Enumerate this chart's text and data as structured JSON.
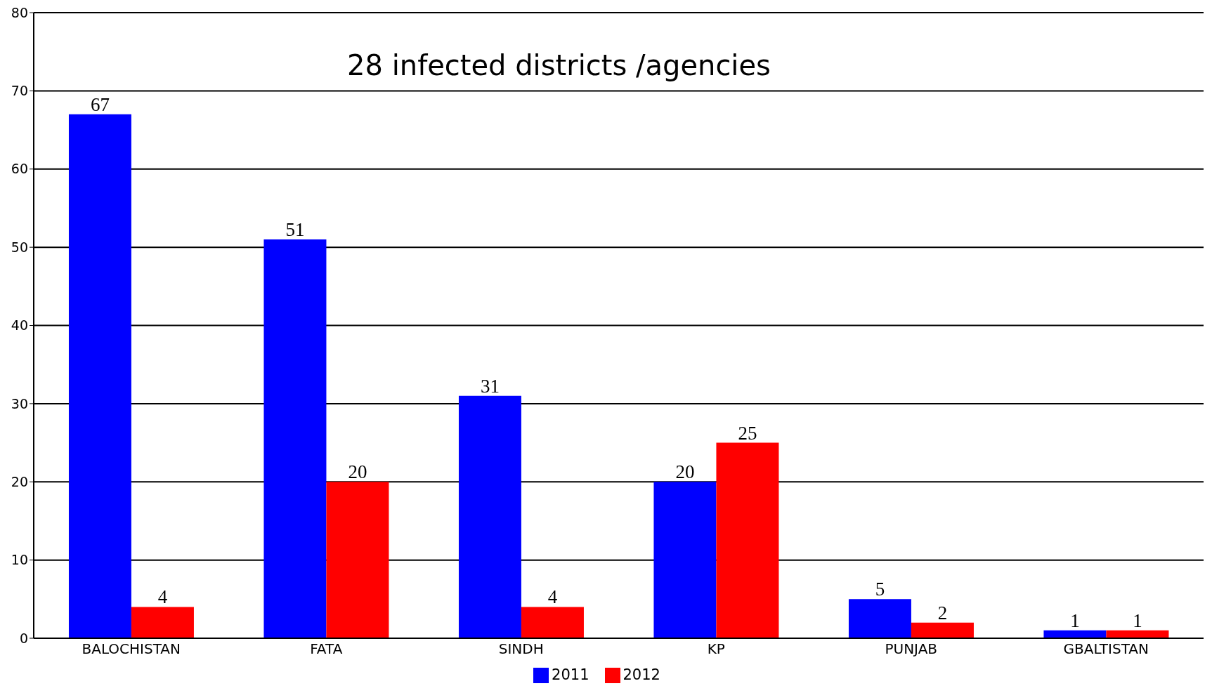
{
  "chart_data": {
    "type": "bar",
    "title": "28 infected districts /agencies",
    "categories": [
      "BALOCHISTAN",
      "FATA",
      "SINDH",
      "KP",
      "PUNJAB",
      "GBALTISTAN"
    ],
    "series": [
      {
        "name": "2011",
        "color": "#0000ff",
        "values": [
          67,
          51,
          31,
          20,
          5,
          1
        ]
      },
      {
        "name": "2012",
        "color": "#ff0000",
        "values": [
          4,
          20,
          4,
          25,
          2,
          1
        ]
      }
    ],
    "ylim": [
      0,
      80
    ],
    "yticks": [
      0,
      10,
      20,
      30,
      40,
      50,
      60,
      70,
      80
    ],
    "grid": "y",
    "legend": "bottom",
    "data_labels": true
  }
}
